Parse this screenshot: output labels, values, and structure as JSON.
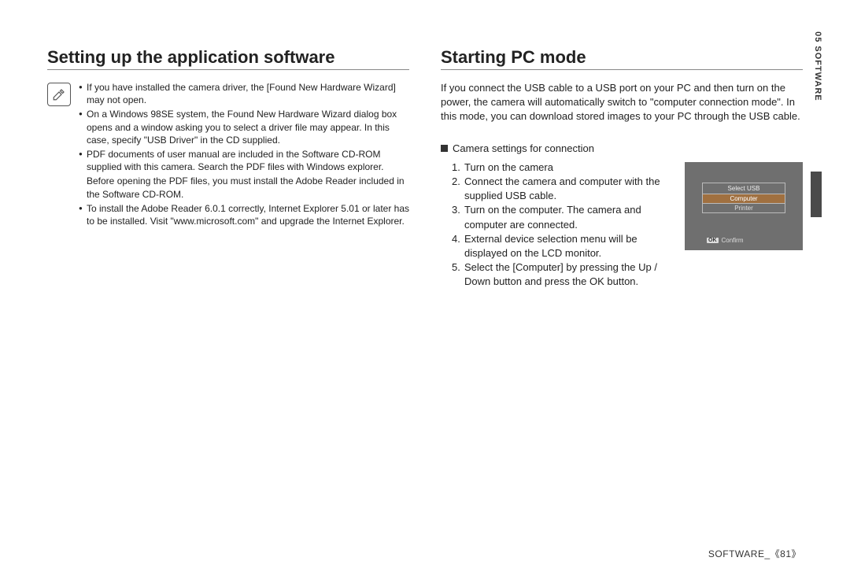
{
  "left": {
    "title": "Setting up the application software",
    "bullets": [
      {
        "type": "bullet",
        "text": "If you have installed the camera driver, the [Found New Hardware Wizard] may not open."
      },
      {
        "type": "bullet",
        "text": "On a Windows 98SE system, the Found New Hardware Wizard dialog box opens and a window asking you to select a driver file may appear. In this case, specify \"USB Driver\" in the CD supplied."
      },
      {
        "type": "bullet",
        "text": "PDF documents of user manual are included in the Software CD-ROM supplied with this camera. Search the PDF files with Windows explorer."
      },
      {
        "type": "sub",
        "text": "Before opening the PDF files, you must install the Adobe Reader included in the Software CD-ROM."
      },
      {
        "type": "bullet",
        "text": "To install the Adobe Reader 6.0.1 correctly, Internet Explorer 5.01 or later has to be installed. Visit \"www.microsoft.com\" and upgrade the Internet Explorer."
      }
    ]
  },
  "right": {
    "title": "Starting PC mode",
    "intro": "If you connect the USB cable to a USB port on your PC and then turn on the power, the camera will automatically switch to \"computer connection mode\". In this mode, you can download stored images to your PC through the USB cable.",
    "sub_heading": "Camera settings for connection",
    "steps": [
      "Turn on the camera",
      "Connect the camera and computer with the supplied USB cable.",
      "Turn on the computer. The camera and computer are connected.",
      "External device selection menu will be displayed on the LCD monitor.",
      "Select the [Computer] by pressing the Up / Down button and press the OK button."
    ],
    "lcd": {
      "title": "Select USB",
      "options": [
        "Computer",
        "Printer"
      ],
      "selected_index": 0,
      "confirm_label": "Confirm",
      "ok_label": "OK",
      "bg_color": "#6f6f6f",
      "border_color": "#bbbbbb",
      "selected_bg": "#a07040"
    }
  },
  "side_tab": "05 SOFTWARE",
  "footer_label": "SOFTWARE_",
  "footer_page": "《81》",
  "colors": {
    "text": "#222222",
    "rule": "#888888",
    "tab_dark": "#4a4a4a"
  }
}
